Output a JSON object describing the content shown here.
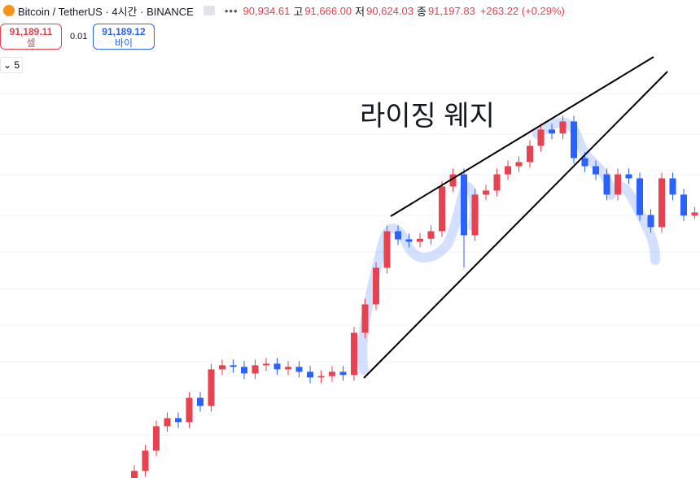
{
  "header": {
    "symbol": "Bitcoin / TetherUS · 4시간 · BINANCE",
    "open": "90,934.61",
    "high_label": "고",
    "high": "91,666.00",
    "low_label": "저",
    "low": "90,624.03",
    "close_label": "종",
    "close": "91,197.83",
    "change": "+263.22 (+0.29%)"
  },
  "trade": {
    "sell_price": "91,189.11",
    "sell_label": "셀",
    "spread": "0.01",
    "buy_price": "91,189.12",
    "buy_label": "바이"
  },
  "indicators_count": "5",
  "annotation": "라이징 웨지",
  "chart_data": {
    "type": "candlestick",
    "up_color": "#e8414f",
    "down_color": "#2962ff",
    "ylim": [
      68000,
      105500
    ],
    "open": [
      67500,
      68620,
      70390,
      72520,
      73230,
      72880,
      75010,
      74300,
      77490,
      77850,
      77710,
      77140,
      77850,
      77990,
      77490,
      77710,
      77280,
      76780,
      76900,
      77280,
      77000,
      80690,
      83170,
      86370,
      89560,
      88850,
      88640,
      88900,
      89560,
      93470,
      94530,
      89210,
      92760,
      93110,
      94530,
      95240,
      95600,
      97020,
      98440,
      98100,
      99150,
      95950,
      95240,
      94530,
      92760,
      94530,
      94180,
      90980,
      89920,
      94180,
      92760,
      90934.61
    ],
    "high": [
      69120,
      70890,
      73020,
      73730,
      73730,
      75510,
      75510,
      77990,
      78350,
      78350,
      78210,
      78350,
      78490,
      78490,
      78210,
      78210,
      77780,
      77400,
      77780,
      77780,
      81190,
      83670,
      86870,
      90060,
      90060,
      89350,
      89400,
      90060,
      93970,
      95030,
      95030,
      93260,
      93610,
      95030,
      95740,
      96100,
      97520,
      98940,
      98940,
      99650,
      99650,
      96450,
      95740,
      95030,
      95030,
      95030,
      94680,
      91480,
      94680,
      94680,
      93260,
      91666
    ],
    "low": [
      67000,
      68120,
      69890,
      72020,
      72380,
      72380,
      73800,
      73800,
      76990,
      77210,
      76640,
      76640,
      77350,
      76990,
      76990,
      76780,
      76280,
      76280,
      76400,
      76500,
      76500,
      80190,
      82670,
      85870,
      88350,
      88140,
      88140,
      88400,
      89060,
      92970,
      86400,
      88710,
      92260,
      92610,
      94030,
      94740,
      95100,
      96520,
      97600,
      97600,
      95450,
      94740,
      94030,
      92260,
      92260,
      93680,
      90480,
      89420,
      89420,
      92260,
      90430,
      90624.03
    ],
    "close": [
      68620,
      70390,
      72520,
      73230,
      72880,
      75010,
      74300,
      77490,
      77850,
      77710,
      77140,
      77850,
      77990,
      77490,
      77710,
      77280,
      76780,
      76900,
      77280,
      77000,
      80690,
      83170,
      86370,
      89560,
      88850,
      88640,
      88900,
      89560,
      93470,
      94530,
      89210,
      92760,
      93110,
      94530,
      95240,
      95600,
      97020,
      98440,
      98100,
      99150,
      95950,
      95240,
      94530,
      92760,
      94530,
      94180,
      90980,
      89920,
      94180,
      92760,
      90934.61,
      91197.83
    ]
  }
}
